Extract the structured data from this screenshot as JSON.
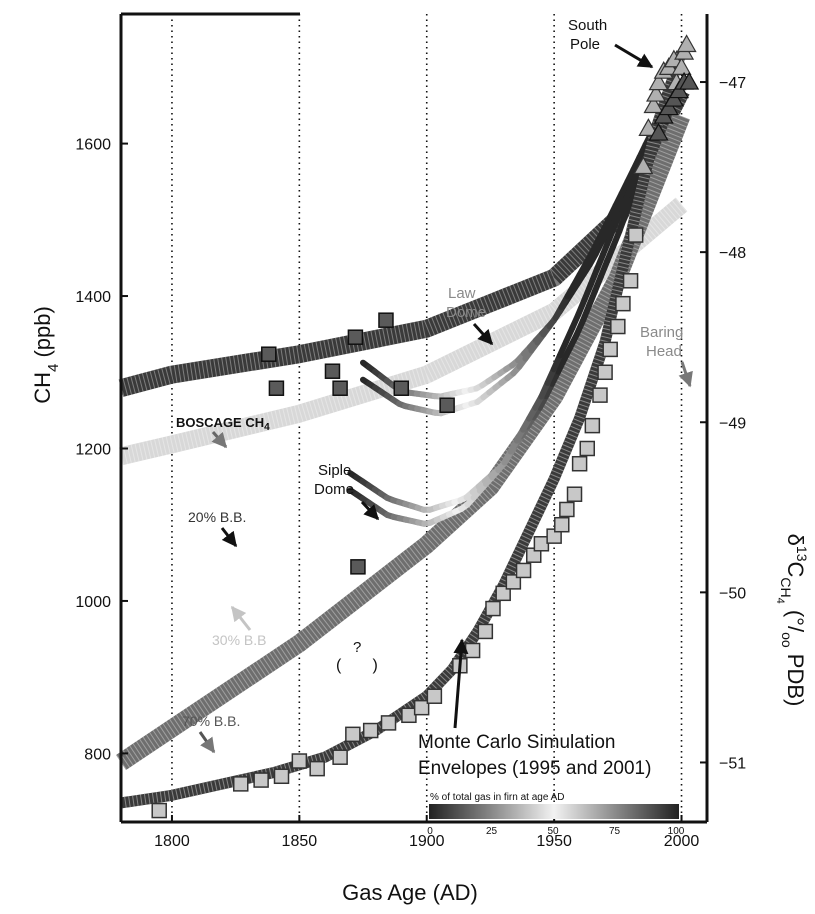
{
  "chart_data": {
    "type": "scatter",
    "xlabel": "Gas Age (AD)",
    "x_ticks": [
      1800,
      1850,
      1900,
      1950,
      2000
    ],
    "xlim": [
      1780,
      2010
    ],
    "left_axis": {
      "label_main": "CH",
      "label_sub": "4",
      "label_unit": " (ppb)",
      "ticks": [
        800,
        1000,
        1200,
        1400,
        1600
      ],
      "ylim": [
        710,
        1770
      ]
    },
    "right_axis": {
      "label_delta": "δ",
      "label_sup": "13",
      "label_c": "C",
      "label_sub": "CH",
      "label_sub2": "4",
      "label_unit": " (°/",
      "label_unit_sub": "oo",
      "label_unit_end": " PDB)",
      "ticks": [
        -47,
        -48,
        -49,
        -50,
        -51
      ],
      "ylim": [
        -51.35,
        -46.6
      ]
    },
    "series": [
      {
        "kind": "ch4_curve",
        "x": [
          1780,
          1800,
          1820,
          1840,
          1860,
          1880,
          1900,
          1910,
          1920,
          1930,
          1940,
          1950,
          1960,
          1970,
          1980,
          1990,
          2000
        ],
        "y": [
          735,
          745,
          760,
          775,
          795,
          830,
          875,
          910,
          960,
          1020,
          1090,
          1160,
          1240,
          1340,
          1480,
          1620,
          1720
        ]
      },
      {
        "name": "Law Dome",
        "kind": "ch4_points",
        "x": [
          1795,
          1827,
          1835,
          1843,
          1850,
          1857,
          1866,
          1871,
          1878,
          1885,
          1893,
          1898,
          1903,
          1913,
          1918,
          1923,
          1926,
          1930,
          1934,
          1938,
          1942,
          1945,
          1950,
          1953,
          1955,
          1958,
          1960,
          1963,
          1965,
          1968,
          1970,
          1972,
          1975,
          1977,
          1980,
          1982
        ],
        "y": [
          725,
          760,
          765,
          770,
          790,
          780,
          795,
          825,
          830,
          840,
          850,
          860,
          875,
          915,
          935,
          960,
          990,
          1010,
          1025,
          1040,
          1060,
          1075,
          1085,
          1100,
          1120,
          1140,
          1180,
          1200,
          1230,
          1270,
          1300,
          1330,
          1360,
          1390,
          1420,
          1480
        ]
      },
      {
        "name": "South Pole",
        "kind": "ch4_triangles",
        "x": [
          1985,
          1987,
          1989,
          1990,
          1991,
          1993,
          1995,
          1997,
          1998,
          2000,
          2001,
          2002
        ],
        "y": [
          1570,
          1620,
          1650,
          1665,
          1680,
          1695,
          1700,
          1710,
          1680,
          1700,
          1720,
          1730
        ]
      },
      {
        "name": "20% B.B.",
        "kind": "band",
        "x": [
          1780,
          1800,
          1850,
          1900,
          1925,
          1950,
          1975,
          2000
        ],
        "y": [
          -48.8,
          -48.72,
          -48.6,
          -48.45,
          -48.3,
          -48.15,
          -47.8,
          -47.05
        ],
        "color": "#3a3a3a"
      },
      {
        "name": "30% B.B",
        "kind": "band",
        "x": [
          1780,
          1800,
          1850,
          1900,
          1950,
          2000
        ],
        "y": [
          -49.2,
          -49.13,
          -48.95,
          -48.72,
          -48.35,
          -47.72
        ],
        "color": "#d8d8d8"
      },
      {
        "name": "70% B.B.",
        "kind": "band",
        "x": [
          1780,
          1800,
          1850,
          1900,
          1925,
          1950,
          1975,
          2000
        ],
        "y": [
          -51.0,
          -50.8,
          -50.3,
          -49.72,
          -49.38,
          -48.85,
          -48.15,
          -47.2
        ],
        "color": "#6e6e6e"
      },
      {
        "name": "Siple Dome",
        "kind": "d13c_points",
        "x": [
          1838,
          1841,
          1863,
          1866,
          1872,
          1884,
          1890,
          1908
        ],
        "y": [
          -48.6,
          -48.8,
          -48.7,
          -48.8,
          -48.5,
          -48.4,
          -48.8,
          -48.9
        ]
      },
      {
        "name": "?",
        "kind": "d13c_points",
        "x": [
          1873
        ],
        "y": [
          -49.85
        ]
      },
      {
        "name": "Baring Head",
        "kind": "d13c_triangles",
        "x": [
          1991,
          1993,
          1995,
          1997,
          1999,
          2001,
          2003
        ],
        "y": [
          -47.3,
          -47.2,
          -47.15,
          -47.1,
          -47.05,
          -47.0,
          -47.0
        ]
      },
      {
        "name": "Monte Carlo envelope",
        "kind": "envelope",
        "x": [
          1875,
          1890,
          1905,
          1920,
          1935,
          1950,
          1965,
          1980,
          1992
        ],
        "y": [
          -48.65,
          -48.82,
          -48.85,
          -48.8,
          -48.65,
          -48.4,
          -48.05,
          -47.6,
          -47.2
        ]
      },
      {
        "name": "Monte Carlo envelope",
        "kind": "envelope",
        "x": [
          1875,
          1890,
          1905,
          1920,
          1935,
          1950,
          1965,
          1980,
          1993
        ],
        "y": [
          -48.75,
          -48.9,
          -48.95,
          -48.88,
          -48.7,
          -48.4,
          -48.0,
          -47.55,
          -47.15
        ]
      },
      {
        "name": "Monte Carlo envelope",
        "kind": "envelope",
        "x": [
          1870,
          1885,
          1900,
          1915,
          1930,
          1945,
          1960,
          1975,
          1990
        ],
        "y": [
          -49.3,
          -49.45,
          -49.52,
          -49.45,
          -49.25,
          -48.9,
          -48.45,
          -47.9,
          -47.3
        ]
      },
      {
        "name": "Monte Carlo envelope",
        "kind": "envelope",
        "x": [
          1870,
          1885,
          1900,
          1915,
          1930,
          1945,
          1960,
          1975,
          1991
        ],
        "y": [
          -49.4,
          -49.55,
          -49.6,
          -49.5,
          -49.25,
          -48.85,
          -48.35,
          -47.8,
          -47.25
        ]
      }
    ],
    "annotations": {
      "south_pole": "South\nPole",
      "law_dome": "Law\nDome",
      "baring_head": "Baring\nHead",
      "boscage": "BOSCAGE CH",
      "boscage_sub": "4",
      "siple_dome": "Siple\nDome",
      "bb20": "20% B.B.",
      "bb30": "30% B.B",
      "bb70": "70% B.B.",
      "question": "?",
      "question_paren": "(       )",
      "monte_carlo": "Monte Carlo Simulation\nEnvelopes (1995 and 2001)"
    },
    "colorbar": {
      "title": "% of total gas in firn at age AD",
      "ticks": [
        "0",
        "25",
        "50",
        "75",
        "100"
      ]
    },
    "grid": "vertical dotted lines at x ticks"
  }
}
